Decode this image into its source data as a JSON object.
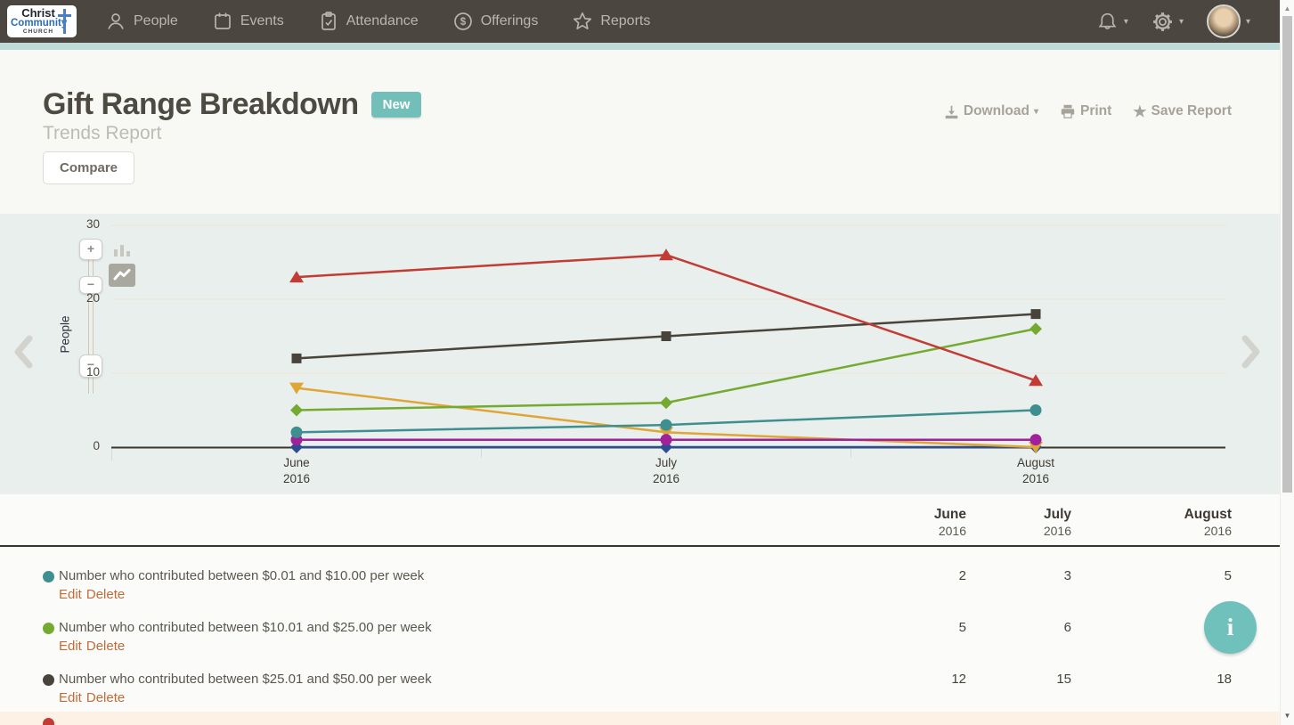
{
  "nav": {
    "logo": {
      "line1": "Christ",
      "line2": "Community",
      "line3": "CHURCH"
    },
    "items": [
      {
        "label": "People",
        "icon": "person-icon"
      },
      {
        "label": "Events",
        "icon": "calendar-icon"
      },
      {
        "label": "Attendance",
        "icon": "clipboard-check-icon"
      },
      {
        "label": "Offerings",
        "icon": "dollar-circle-icon"
      },
      {
        "label": "Reports",
        "icon": "star-icon"
      }
    ]
  },
  "header": {
    "title": "Gift Range Breakdown",
    "badge": "New",
    "subtitle": "Trends Report",
    "compare_label": "Compare",
    "actions": {
      "download": "Download",
      "print": "Print",
      "save": "Save Report"
    }
  },
  "chart_data": {
    "type": "line",
    "title": "",
    "xlabel": "",
    "ylabel": "People",
    "ylim": [
      0,
      30
    ],
    "yticks": [
      0,
      10,
      20,
      30
    ],
    "grid": true,
    "legend_position": "table-below-chart",
    "categories": [
      {
        "month": "June",
        "year": "2016"
      },
      {
        "month": "July",
        "year": "2016"
      },
      {
        "month": "August",
        "year": "2016"
      }
    ],
    "series": [
      {
        "name": "",
        "color": "#2e4d8e",
        "marker": "diamond",
        "values": [
          0,
          0,
          0
        ]
      },
      {
        "name": "",
        "color": "#dfa637",
        "marker": "triangle-down",
        "values": [
          8,
          2,
          0
        ]
      },
      {
        "name": "",
        "color": "#a0219b",
        "marker": "circle",
        "values": [
          1,
          1,
          1
        ]
      },
      {
        "name": "Number who contributed between $0.01 and $10.00 per week",
        "color": "#3e8f8f",
        "marker": "circle",
        "values": [
          2,
          3,
          5
        ]
      },
      {
        "name": "Number who contributed between $10.01 and $25.00 per week",
        "color": "#74aa30",
        "marker": "diamond",
        "values": [
          5,
          6,
          16
        ]
      },
      {
        "name": "Number who contributed between $25.01 and $50.00 per week",
        "color": "#48443b",
        "marker": "square",
        "values": [
          12,
          15,
          18
        ]
      },
      {
        "name": "",
        "color": "#c23b34",
        "marker": "triangle-up",
        "values": [
          23,
          26,
          9
        ]
      }
    ]
  },
  "table": {
    "columns": [
      {
        "month": "June",
        "year": "2016"
      },
      {
        "month": "July",
        "year": "2016"
      },
      {
        "month": "August",
        "year": "2016"
      }
    ],
    "rows": [
      {
        "color": "#3e8f8f",
        "label": "Number who contributed between $0.01 and $10.00 per week",
        "edit": "Edit",
        "delete": "Delete",
        "values": [
          "2",
          "3",
          "5"
        ]
      },
      {
        "color": "#74aa30",
        "label": "Number who contributed between $10.01 and $25.00 per week",
        "edit": "Edit",
        "delete": "Delete",
        "values": [
          "5",
          "6",
          ""
        ]
      },
      {
        "color": "#48443b",
        "label": "Number who contributed between $25.01 and $50.00 per week",
        "edit": "Edit",
        "delete": "Delete",
        "values": [
          "12",
          "15",
          "18"
        ]
      }
    ],
    "partial_row_color": "#c23b34"
  },
  "icons": {
    "caret": "▾",
    "plus": "+",
    "minus": "−",
    "up_arrow": "▲",
    "down_arrow": "▼",
    "dollar": "$",
    "star": "★",
    "info": "i"
  },
  "colors": {
    "accent_teal": "#72bfba",
    "nav_background": "#4b4740",
    "chart_band_background": "#e9efec",
    "link_orange": "#c16b3b",
    "highlight_row_peach": "#fdf0e5"
  }
}
